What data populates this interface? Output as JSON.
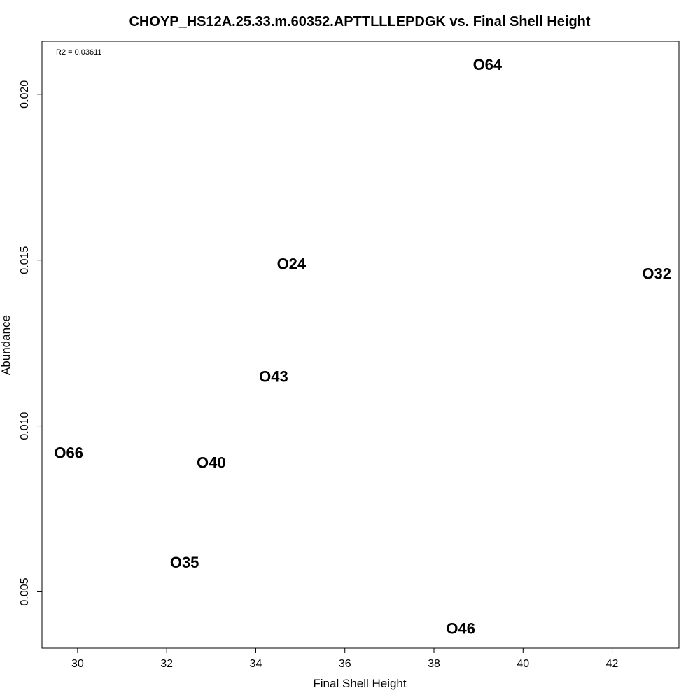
{
  "chart_data": {
    "type": "scatter",
    "title": "CHOYP_HS12A.25.33.m.60352.APTTLLLEPDGK vs. Final Shell Height",
    "xlabel": "Final Shell Height",
    "ylabel": "Abundance",
    "annotation": "R2 = 0.03611",
    "xlim": [
      29.2,
      43.5
    ],
    "ylim": [
      0.0033,
      0.0216
    ],
    "xticks": [
      30,
      32,
      34,
      36,
      38,
      40,
      42
    ],
    "xtick_labels": [
      "30",
      "32",
      "34",
      "36",
      "38",
      "40",
      "42"
    ],
    "yticks": [
      0.005,
      0.01,
      0.015,
      0.02
    ],
    "ytick_labels": [
      "0.005",
      "0.010",
      "0.015",
      "0.020"
    ],
    "grid": false,
    "points": [
      {
        "label": "O64",
        "x": 39.2,
        "y": 0.0209
      },
      {
        "label": "O24",
        "x": 34.8,
        "y": 0.0149
      },
      {
        "label": "O32",
        "x": 43.0,
        "y": 0.0146
      },
      {
        "label": "O43",
        "x": 34.4,
        "y": 0.0115
      },
      {
        "label": "O66",
        "x": 29.8,
        "y": 0.0092
      },
      {
        "label": "O40",
        "x": 33.0,
        "y": 0.0089
      },
      {
        "label": "O35",
        "x": 32.4,
        "y": 0.0059
      },
      {
        "label": "O46",
        "x": 38.6,
        "y": 0.0039
      }
    ]
  }
}
